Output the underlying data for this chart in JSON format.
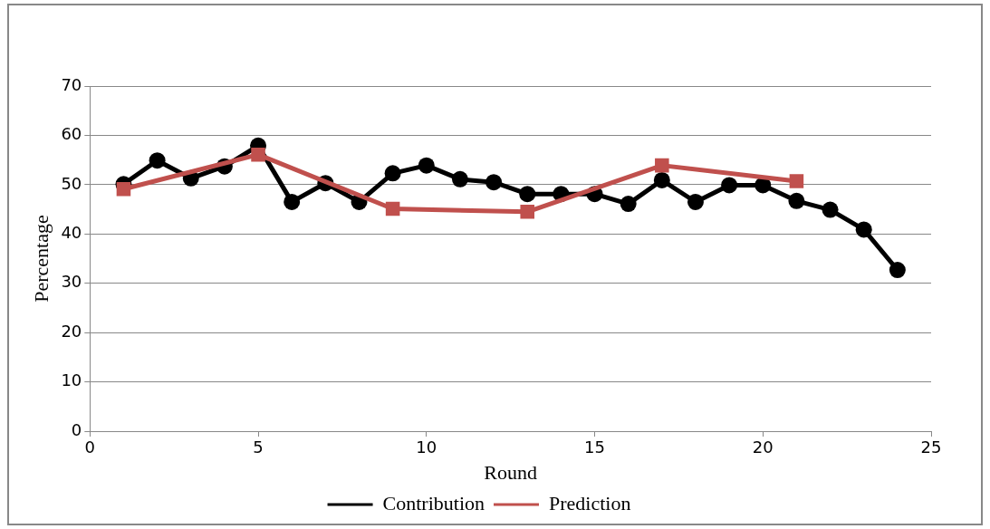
{
  "chart_data": {
    "type": "line",
    "xlabel": "Round",
    "ylabel": "Percentage",
    "xlim": [
      0,
      25
    ],
    "xticks": [
      0,
      5,
      10,
      15,
      20,
      25
    ],
    "ylim": [
      0,
      70
    ],
    "yticks": [
      0,
      10,
      20,
      30,
      40,
      50,
      60,
      70
    ],
    "grid": "y",
    "legend": "bottom",
    "series": [
      {
        "name": "Contribution",
        "color": "#000000",
        "marker": "circle",
        "x": [
          1,
          2,
          3,
          4,
          5,
          6,
          7,
          8,
          9,
          10,
          11,
          12,
          13,
          14,
          15,
          16,
          17,
          18,
          19,
          20,
          21,
          22,
          23,
          24
        ],
        "values": [
          50.1,
          54.9,
          51.3,
          53.7,
          57.9,
          46.5,
          50.3,
          46.5,
          52.3,
          53.9,
          51.1,
          50.5,
          48.1,
          48.1,
          48.1,
          46.1,
          50.9,
          46.5,
          49.9,
          49.9,
          46.7,
          44.9,
          40.9,
          32.7
        ]
      },
      {
        "name": "Prediction",
        "color": "#c0504d",
        "marker": "square",
        "x": [
          1,
          5,
          9,
          13,
          17,
          21
        ],
        "values": [
          49.1,
          56.1,
          45.1,
          44.5,
          53.9,
          50.7
        ]
      }
    ]
  }
}
